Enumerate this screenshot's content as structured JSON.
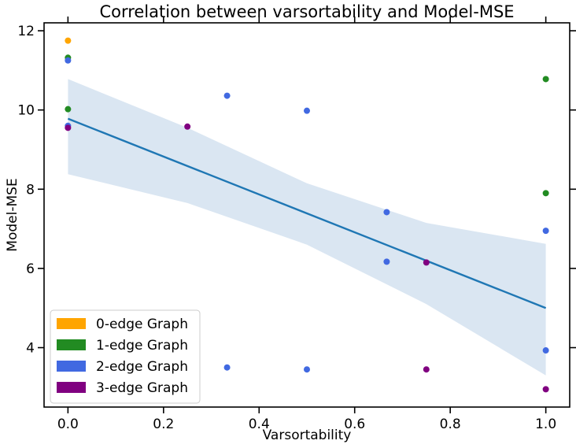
{
  "chart_data": {
    "type": "scatter",
    "title": "Correlation between varsortability and Model-MSE",
    "xlabel": "Varsortability",
    "ylabel": "Model-MSE",
    "xlim": [
      -0.05,
      1.05
    ],
    "ylim": [
      2.5,
      12.2
    ],
    "xticks": [
      0.0,
      0.2,
      0.4,
      0.6,
      0.8,
      1.0
    ],
    "xtick_labels": [
      "0.0",
      "0.2",
      "0.4",
      "0.6",
      "0.8",
      "1.0"
    ],
    "yticks": [
      4,
      6,
      8,
      10,
      12
    ],
    "ytick_labels": [
      "4",
      "6",
      "8",
      "10",
      "12"
    ],
    "grid": false,
    "legend_position": "lower-left",
    "series": [
      {
        "name": "0-edge Graph",
        "color": "#ffa500",
        "points": [
          [
            0.0,
            11.75
          ]
        ]
      },
      {
        "name": "1-edge Graph",
        "color": "#228b22",
        "points": [
          [
            0.0,
            11.32
          ],
          [
            0.0,
            10.02
          ],
          [
            1.0,
            10.78
          ],
          [
            1.0,
            7.9
          ]
        ]
      },
      {
        "name": "2-edge Graph",
        "color": "#4169e1",
        "points": [
          [
            0.0,
            11.25
          ],
          [
            0.0,
            9.6
          ],
          [
            0.333,
            10.36
          ],
          [
            0.5,
            9.98
          ],
          [
            0.667,
            7.42
          ],
          [
            0.667,
            6.17
          ],
          [
            1.0,
            6.95
          ],
          [
            1.0,
            3.93
          ],
          [
            0.333,
            3.5
          ],
          [
            0.5,
            3.45
          ]
        ]
      },
      {
        "name": "3-edge Graph",
        "color": "#800080",
        "points": [
          [
            0.0,
            9.55
          ],
          [
            0.25,
            9.58
          ],
          [
            0.75,
            6.15
          ],
          [
            0.75,
            3.45
          ],
          [
            1.0,
            2.95
          ]
        ]
      }
    ],
    "regression": {
      "color": "#1f77b4",
      "band_color": "#dae6f2",
      "x": [
        0.0,
        1.0
      ],
      "y": [
        9.78,
        5.0
      ],
      "band": {
        "x": [
          0.0,
          0.25,
          0.5,
          0.75,
          1.0
        ],
        "lower": [
          8.38,
          7.65,
          6.6,
          5.1,
          3.3
        ],
        "upper": [
          10.78,
          9.55,
          8.15,
          7.15,
          6.62
        ]
      }
    }
  }
}
